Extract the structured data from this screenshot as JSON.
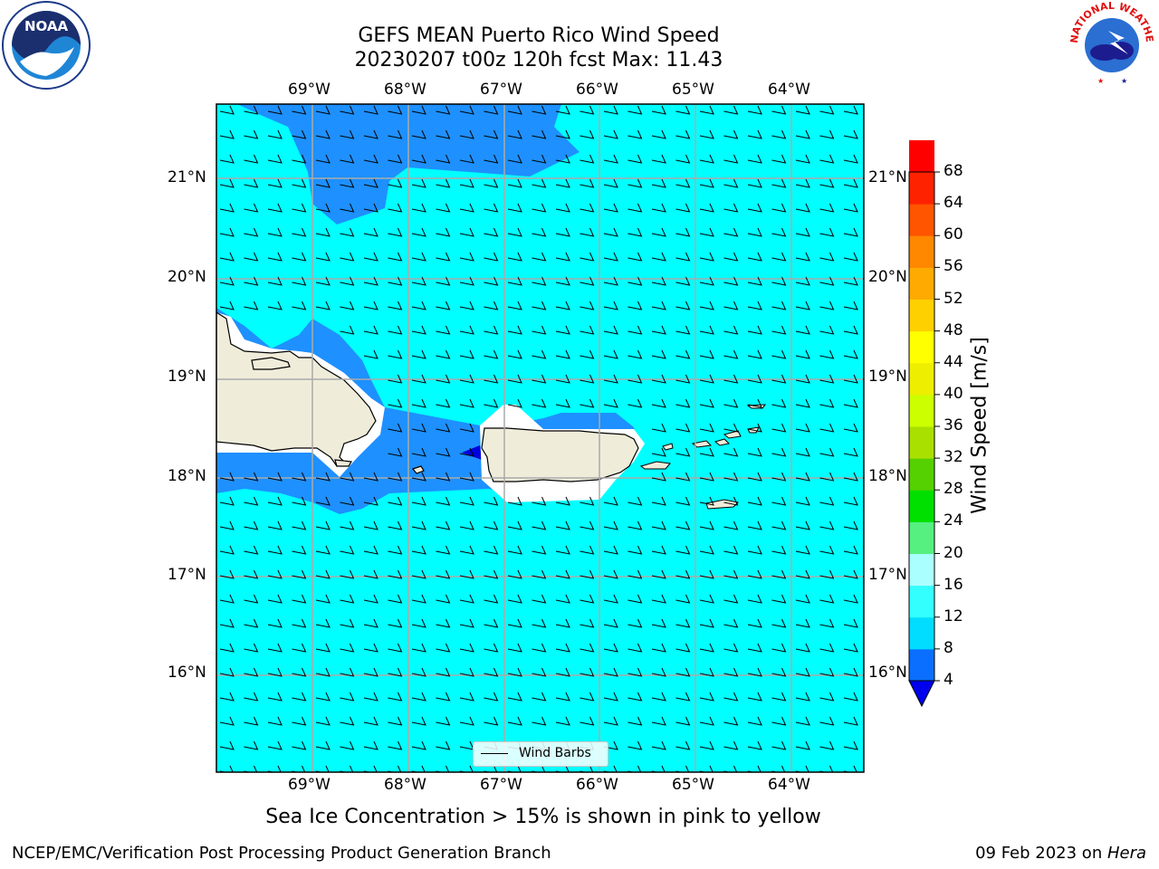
{
  "title": {
    "line1": "GEFS MEAN Puerto Rico Wind Speed",
    "line2": "20230207 t00z 120h fcst   Max: 11.43"
  },
  "axes": {
    "lon_labels": [
      "69°W",
      "68°W",
      "67°W",
      "66°W",
      "65°W",
      "64°W"
    ],
    "lat_labels": [
      "21°N",
      "20°N",
      "19°N",
      "18°N",
      "17°N",
      "16°N"
    ]
  },
  "colorbar": {
    "title": "Wind Speed [m/s]",
    "levels": [
      "4",
      "8",
      "12",
      "16",
      "20",
      "24",
      "28",
      "32",
      "36",
      "40",
      "44",
      "48",
      "52",
      "56",
      "60",
      "64",
      "68"
    ],
    "colors": [
      "#0a6fff",
      "#00ddff",
      "#33ffff",
      "#aaffff",
      "#55f080",
      "#00e000",
      "#55d000",
      "#aae000",
      "#ccff00",
      "#eeee00",
      "#ffff00",
      "#ffd000",
      "#ffaa00",
      "#ff8800",
      "#ff5500",
      "#ff2200",
      "#ff0000"
    ],
    "under_color": "#0000ee"
  },
  "legend": {
    "label": "Wind Barbs"
  },
  "map_colors": {
    "sea_light": "#00ffff",
    "sea_mid": "#1e90ff",
    "sea_dark": "#0000dd",
    "land": "#efecda",
    "grid": "#aaaaaa"
  },
  "note": "Sea Ice Concentration > 15% is shown in pink to yellow",
  "footer": {
    "left": "NCEP/EMC/Verification Post Processing Product Generation Branch",
    "right_date": "09 Feb 2023 on ",
    "right_host": "Hera"
  },
  "logos": {
    "noaa_text": "NOAA",
    "nws_text": "NATIONAL WEATHER SERVICE"
  }
}
